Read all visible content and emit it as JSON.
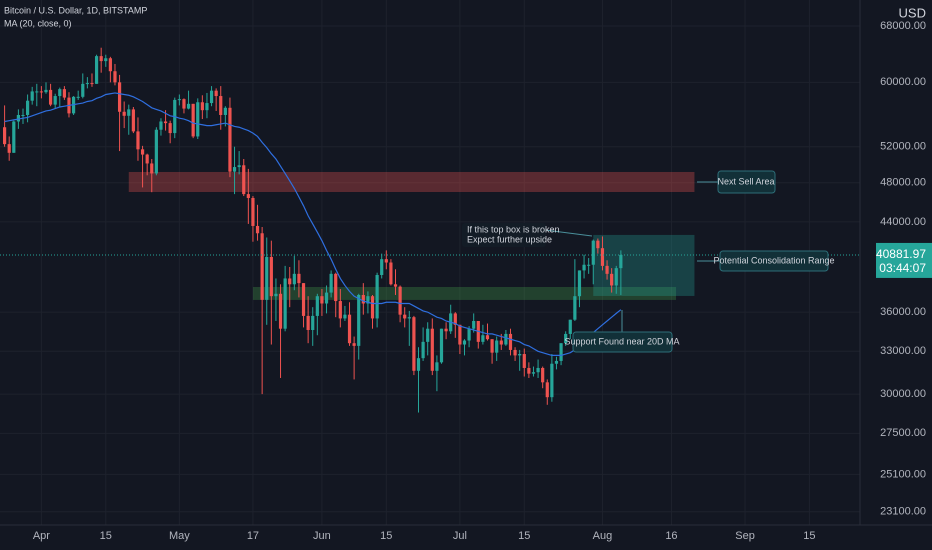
{
  "chart_data": {
    "type": "candlestick",
    "title": "Bitcoin / U.S. Dollar, 1D, BITSTAMP",
    "indicator": "MA (20, close, 0)",
    "currency": "USD",
    "price_label": "40881.97",
    "countdown": "03:44:07",
    "log_scale": true,
    "grid": true,
    "up_color": "#26a69a",
    "down_color": "#ef5350",
    "ma_color": "#2f6fe0",
    "xlim": [
      "03-23",
      "09-26"
    ],
    "ylim": [
      22430,
      72050
    ],
    "yticks": [
      {
        "value": 68000,
        "label": "68000.00"
      },
      {
        "value": 60000,
        "label": "60000.00"
      },
      {
        "value": 52000,
        "label": "52000.00"
      },
      {
        "value": 48000,
        "label": "48000.00"
      },
      {
        "value": 44000,
        "label": "44000.00"
      },
      {
        "value": 36000,
        "label": "36000.00"
      },
      {
        "value": 33000,
        "label": "33000.00"
      },
      {
        "value": 30000,
        "label": "30000.00"
      },
      {
        "value": 27500,
        "label": "27500.00"
      },
      {
        "value": 25100,
        "label": "25100.00"
      },
      {
        "value": 23100,
        "label": "23100.00"
      }
    ],
    "xticks": [
      {
        "value": "04-01",
        "label": "Apr"
      },
      {
        "value": "04-15",
        "label": "15"
      },
      {
        "value": "05-01",
        "label": "May"
      },
      {
        "value": "05-17",
        "label": "17"
      },
      {
        "value": "06-01",
        "label": "Jun"
      },
      {
        "value": "06-15",
        "label": "15"
      },
      {
        "value": "07-01",
        "label": "Jul"
      },
      {
        "value": "07-15",
        "label": "15"
      },
      {
        "value": "08-01",
        "label": "Aug"
      },
      {
        "value": "08-16",
        "label": "16"
      },
      {
        "value": "09-01",
        "label": "Sep"
      },
      {
        "value": "09-15",
        "label": "15"
      }
    ],
    "x": [
      "03-24",
      "03-25",
      "03-26",
      "03-27",
      "03-28",
      "03-29",
      "03-30",
      "03-31",
      "04-01",
      "04-02",
      "04-03",
      "04-04",
      "04-05",
      "04-06",
      "04-07",
      "04-08",
      "04-09",
      "04-10",
      "04-11",
      "04-12",
      "04-13",
      "04-14",
      "04-15",
      "04-16",
      "04-17",
      "04-18",
      "04-19",
      "04-20",
      "04-21",
      "04-22",
      "04-23",
      "04-24",
      "04-25",
      "04-26",
      "04-27",
      "04-28",
      "04-29",
      "04-30",
      "05-01",
      "05-02",
      "05-03",
      "05-04",
      "05-05",
      "05-06",
      "05-07",
      "05-08",
      "05-09",
      "05-10",
      "05-11",
      "05-12",
      "05-13",
      "05-14",
      "05-15",
      "05-16",
      "05-17",
      "05-18",
      "05-19",
      "05-20",
      "05-21",
      "05-22",
      "05-23",
      "05-24",
      "05-25",
      "05-26",
      "05-27",
      "05-28",
      "05-29",
      "05-30",
      "05-31",
      "06-01",
      "06-02",
      "06-03",
      "06-04",
      "06-05",
      "06-06",
      "06-07",
      "06-08",
      "06-09",
      "06-10",
      "06-11",
      "06-12",
      "06-13",
      "06-14",
      "06-15",
      "06-16",
      "06-17",
      "06-18",
      "06-19",
      "06-20",
      "06-21",
      "06-22",
      "06-23",
      "06-24",
      "06-25",
      "06-26",
      "06-27",
      "06-28",
      "06-29",
      "06-30",
      "07-01",
      "07-02",
      "07-03",
      "07-04",
      "07-05",
      "07-06",
      "07-07",
      "07-08",
      "07-09",
      "07-10",
      "07-11",
      "07-12",
      "07-13",
      "07-14",
      "07-15",
      "07-16",
      "07-17",
      "07-18",
      "07-19",
      "07-20",
      "07-21",
      "07-22",
      "07-23",
      "07-24",
      "07-25",
      "07-26",
      "07-27",
      "07-28",
      "07-29",
      "07-30",
      "07-31",
      "08-01",
      "08-02",
      "08-03",
      "08-04",
      "08-05"
    ],
    "candles": [
      [
        54300,
        57000,
        52000,
        52300
      ],
      [
        52300,
        53200,
        50400,
        51300
      ],
      [
        51300,
        55100,
        51300,
        55000
      ],
      [
        55000,
        56500,
        54100,
        55800
      ],
      [
        55800,
        56600,
        54700,
        55800
      ],
      [
        55800,
        58400,
        54900,
        57600
      ],
      [
        57600,
        59400,
        57100,
        58800
      ],
      [
        58800,
        59800,
        56900,
        58800
      ],
      [
        58800,
        59500,
        57900,
        58700
      ],
      [
        58700,
        60000,
        58500,
        59000
      ],
      [
        59000,
        59800,
        56900,
        57100
      ],
      [
        57100,
        58500,
        56600,
        58200
      ],
      [
        58200,
        59300,
        56800,
        59100
      ],
      [
        59100,
        59500,
        57700,
        58000
      ],
      [
        58000,
        58700,
        55500,
        56000
      ],
      [
        56000,
        58200,
        55800,
        58100
      ],
      [
        58100,
        58900,
        57700,
        58100
      ],
      [
        58100,
        61200,
        57900,
        59800
      ],
      [
        59800,
        60700,
        59200,
        59900
      ],
      [
        59900,
        61200,
        59400,
        59800
      ],
      [
        59800,
        63800,
        59800,
        63600
      ],
      [
        63600,
        64800,
        61300,
        62900
      ],
      [
        62900,
        63800,
        62100,
        63300
      ],
      [
        63300,
        63500,
        60000,
        61500
      ],
      [
        61500,
        62500,
        59600,
        60000
      ],
      [
        60000,
        61000,
        51500,
        56200
      ],
      [
        56200,
        57500,
        54200,
        55700
      ],
      [
        55700,
        57100,
        53400,
        56500
      ],
      [
        56500,
        56800,
        53600,
        53800
      ],
      [
        53800,
        55500,
        50400,
        51700
      ],
      [
        51700,
        52100,
        47500,
        51100
      ],
      [
        51100,
        51200,
        48800,
        50100
      ],
      [
        50100,
        50600,
        47000,
        49000
      ],
      [
        49000,
        54300,
        48800,
        54000
      ],
      [
        54000,
        55400,
        53300,
        55000
      ],
      [
        55000,
        56400,
        53900,
        54800
      ],
      [
        54800,
        55100,
        52400,
        53600
      ],
      [
        53600,
        58000,
        53000,
        57700
      ],
      [
        57700,
        58400,
        57000,
        57800
      ],
      [
        57800,
        57900,
        56000,
        56600
      ],
      [
        56600,
        58900,
        56500,
        57200
      ],
      [
        57200,
        57200,
        53000,
        53200
      ],
      [
        53200,
        57900,
        52900,
        57400
      ],
      [
        57400,
        58300,
        55300,
        56400
      ],
      [
        56400,
        58600,
        55400,
        57300
      ],
      [
        57300,
        59500,
        56900,
        58900
      ],
      [
        58900,
        59200,
        56300,
        58200
      ],
      [
        58200,
        59500,
        54000,
        55800
      ],
      [
        55800,
        56900,
        54400,
        56700
      ],
      [
        56700,
        58000,
        48600,
        49200
      ],
      [
        49200,
        52000,
        46800,
        49700
      ],
      [
        49700,
        51500,
        48900,
        49900
      ],
      [
        49900,
        50600,
        46600,
        46800
      ],
      [
        46800,
        49500,
        43800,
        46400
      ],
      [
        46400,
        46600,
        42100,
        43600
      ],
      [
        43600,
        45700,
        42200,
        42900
      ],
      [
        42900,
        43500,
        30000,
        37000
      ],
      [
        37000,
        42500,
        35000,
        40700
      ],
      [
        40700,
        42200,
        33500,
        37300
      ],
      [
        37300,
        38800,
        35300,
        37500
      ],
      [
        37500,
        38300,
        31100,
        34700
      ],
      [
        34700,
        39900,
        34500,
        38800
      ],
      [
        38800,
        39800,
        36400,
        38300
      ],
      [
        38300,
        40800,
        37800,
        39200
      ],
      [
        39200,
        40400,
        37200,
        38400
      ],
      [
        38400,
        38400,
        34800,
        35700
      ],
      [
        35700,
        37300,
        33600,
        34600
      ],
      [
        34600,
        36400,
        33400,
        35700
      ],
      [
        35700,
        37500,
        34200,
        37300
      ],
      [
        37300,
        37900,
        35700,
        36700
      ],
      [
        36700,
        38200,
        35900,
        37600
      ],
      [
        37600,
        39500,
        37200,
        39200
      ],
      [
        39200,
        39300,
        35600,
        36900
      ],
      [
        36900,
        37900,
        34800,
        35500
      ],
      [
        35500,
        36500,
        35300,
        35800
      ],
      [
        35800,
        36800,
        33400,
        33600
      ],
      [
        33600,
        34100,
        31000,
        33400
      ],
      [
        33400,
        37500,
        32400,
        37400
      ],
      [
        37400,
        38400,
        35800,
        36700
      ],
      [
        36700,
        37700,
        35900,
        37300
      ],
      [
        37300,
        37400,
        34700,
        35500
      ],
      [
        35500,
        39300,
        34800,
        39100
      ],
      [
        39100,
        41000,
        38800,
        40500
      ],
      [
        40500,
        41300,
        39600,
        40200
      ],
      [
        40200,
        40500,
        38200,
        38300
      ],
      [
        38300,
        39600,
        37400,
        38100
      ],
      [
        38100,
        38200,
        35200,
        35800
      ],
      [
        35800,
        36400,
        34800,
        35500
      ],
      [
        35500,
        36100,
        33400,
        35600
      ],
      [
        35600,
        35700,
        31300,
        31600
      ],
      [
        31600,
        33300,
        28800,
        32500
      ],
      [
        32500,
        34800,
        32300,
        33700
      ],
      [
        33700,
        35200,
        32700,
        34700
      ],
      [
        34700,
        35500,
        31300,
        31600
      ],
      [
        31600,
        32700,
        30200,
        32200
      ],
      [
        32200,
        34700,
        32100,
        34700
      ],
      [
        34700,
        35200,
        33900,
        34500
      ],
      [
        34500,
        36600,
        34300,
        35900
      ],
      [
        35900,
        36000,
        34000,
        35000
      ],
      [
        35000,
        35000,
        32800,
        33500
      ],
      [
        33500,
        33900,
        32700,
        33800
      ],
      [
        33800,
        34900,
        33300,
        34700
      ],
      [
        34700,
        35900,
        34400,
        35300
      ],
      [
        35300,
        35300,
        33200,
        33700
      ],
      [
        33700,
        35000,
        33500,
        34200
      ],
      [
        34200,
        35100,
        33800,
        33900
      ],
      [
        33900,
        33900,
        32100,
        32900
      ],
      [
        32900,
        34100,
        32300,
        33800
      ],
      [
        33800,
        34300,
        33100,
        33500
      ],
      [
        33500,
        34600,
        33400,
        34300
      ],
      [
        34300,
        34700,
        32700,
        33100
      ],
      [
        33100,
        33300,
        32300,
        32700
      ],
      [
        32700,
        33100,
        31600,
        32800
      ],
      [
        32800,
        33200,
        31200,
        31800
      ],
      [
        31800,
        32200,
        31100,
        31400
      ],
      [
        31400,
        31900,
        31200,
        31500
      ],
      [
        31500,
        32400,
        31100,
        31800
      ],
      [
        31800,
        31900,
        30400,
        30800
      ],
      [
        30800,
        31000,
        29300,
        29800
      ],
      [
        29800,
        32800,
        29500,
        32100
      ],
      [
        32100,
        32600,
        31700,
        32300
      ],
      [
        32300,
        33600,
        32000,
        33600
      ],
      [
        33600,
        34500,
        33400,
        34300
      ],
      [
        34300,
        35400,
        33900,
        35400
      ],
      [
        35400,
        40500,
        35300,
        37300
      ],
      [
        37300,
        39500,
        36400,
        39500
      ],
      [
        39500,
        40900,
        38800,
        40000
      ],
      [
        40000,
        40600,
        39200,
        40000
      ],
      [
        40000,
        42300,
        38300,
        42200
      ],
      [
        42200,
        42400,
        41000,
        41500
      ],
      [
        41500,
        42600,
        39500,
        39900
      ],
      [
        39900,
        40400,
        38700,
        39200
      ],
      [
        39200,
        39700,
        37600,
        38200
      ],
      [
        38200,
        39900,
        37500,
        39700
      ],
      [
        39700,
        41300,
        37400,
        40881.97
      ]
    ],
    "ma": [
      55000,
      55100,
      55200,
      55300,
      55400,
      55500,
      55700,
      55900,
      56100,
      56300,
      56400,
      56600,
      56800,
      56900,
      57000,
      57100,
      57200,
      57300,
      57500,
      57600,
      57900,
      58100,
      58400,
      58500,
      58600,
      58500,
      58400,
      58300,
      58100,
      57800,
      57500,
      57100,
      56700,
      56500,
      56300,
      56000,
      55700,
      55600,
      55400,
      55300,
      55100,
      54800,
      54700,
      54600,
      54500,
      54500,
      54600,
      54700,
      54800,
      54600,
      54400,
      54300,
      54100,
      53900,
      53600,
      53200,
      52500,
      51900,
      51200,
      50600,
      49800,
      49000,
      48200,
      47400,
      46500,
      45600,
      44600,
      43800,
      43000,
      42200,
      41300,
      40500,
      39600,
      38800,
      38200,
      37700,
      37300,
      37100,
      36900,
      36800,
      36700,
      36700,
      36700,
      36800,
      36800,
      36800,
      36700,
      36700,
      36700,
      36500,
      36300,
      36100,
      36000,
      35800,
      35600,
      35500,
      35300,
      35200,
      35100,
      34900,
      34800,
      34700,
      34600,
      34500,
      34400,
      34300,
      34300,
      34200,
      34100,
      34000,
      33900,
      33800,
      33700,
      33500,
      33400,
      33200,
      33000,
      32900,
      32800,
      32700,
      32700,
      32700,
      32800,
      32900,
      33100,
      33400,
      33700,
      34000,
      34400,
      34700,
      35000,
      35300,
      35600,
      35900,
      36200
    ],
    "zones": [
      {
        "start": "04-20",
        "end": "08-21",
        "low": 47020,
        "high": 49160,
        "color": "rgba(239,83,80,0.32)"
      },
      {
        "start": "05-17",
        "end": "08-17",
        "low": 36990,
        "high": 38070,
        "color": "rgba(76,175,80,0.28)"
      },
      {
        "start": "07-30",
        "end": "08-21",
        "low": 37320,
        "high": 42740,
        "color": "rgba(38,166,154,0.30)"
      }
    ],
    "annotations": [
      "Next Sell Area",
      "Potential Consolidation Range",
      "If this top box is broken",
      "Expect further upside",
      "Support Found near 20D MA"
    ]
  }
}
